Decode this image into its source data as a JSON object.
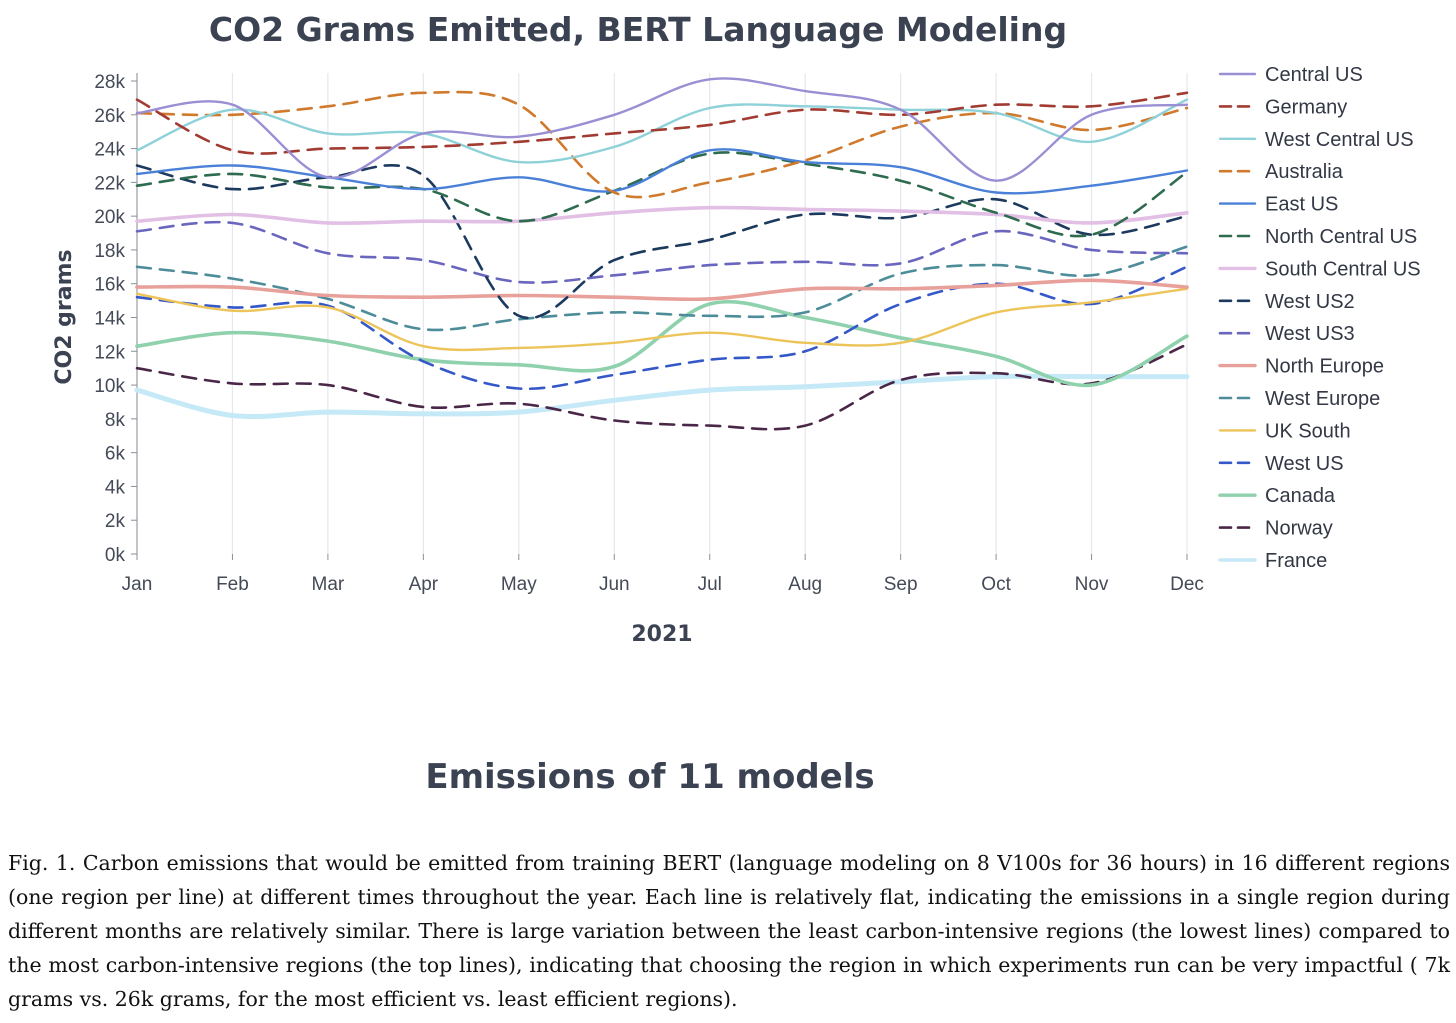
{
  "chart_data": {
    "type": "line",
    "title": "CO2 Grams Emitted, BERT Language Modeling",
    "xlabel": "2021",
    "ylabel": "CO2 grams",
    "categories": [
      "Jan",
      "Feb",
      "Mar",
      "Apr",
      "May",
      "Jun",
      "Jul",
      "Aug",
      "Sep",
      "Oct",
      "Nov",
      "Dec"
    ],
    "y_ticks": [
      "0k",
      "2k",
      "4k",
      "6k",
      "8k",
      "10k",
      "12k",
      "14k",
      "16k",
      "18k",
      "20k",
      "22k",
      "24k",
      "26k",
      "28k"
    ],
    "ylim": [
      0,
      28000
    ],
    "grid": "vertical",
    "legend_position": "right",
    "series": [
      {
        "name": "Central US",
        "color": "#9b8fd4",
        "style": "solid",
        "width": 2.4,
        "values": [
          26100,
          26600,
          22300,
          24900,
          24700,
          26000,
          28100,
          27400,
          26300,
          22100,
          26000,
          26600
        ]
      },
      {
        "name": "Germany",
        "color": "#a23b32",
        "style": "dashed",
        "width": 2.6,
        "values": [
          26900,
          23900,
          24000,
          24100,
          24400,
          24900,
          25400,
          26300,
          26000,
          26600,
          26500,
          27300
        ]
      },
      {
        "name": "West Central US",
        "color": "#8ed1d8",
        "style": "solid",
        "width": 2.4,
        "values": [
          23900,
          26300,
          24900,
          24900,
          23200,
          24100,
          26400,
          26500,
          26300,
          26100,
          24400,
          26900
        ]
      },
      {
        "name": "Australia",
        "color": "#d07a2e",
        "style": "dashed",
        "width": 2.6,
        "values": [
          26100,
          26000,
          26500,
          27300,
          26600,
          21400,
          22000,
          23300,
          25300,
          26100,
          25100,
          26400
        ]
      },
      {
        "name": "East US",
        "color": "#4a80d8",
        "style": "solid",
        "width": 2.4,
        "values": [
          22500,
          23000,
          22300,
          21600,
          22300,
          21500,
          23900,
          23200,
          22900,
          21400,
          21800,
          22700
        ]
      },
      {
        "name": "North Central US",
        "color": "#2e6b4f",
        "style": "dashed",
        "width": 2.6,
        "values": [
          21800,
          22500,
          21700,
          21600,
          19700,
          21500,
          23700,
          23100,
          22100,
          20200,
          18900,
          22600
        ]
      },
      {
        "name": "South Central US",
        "color": "#e2bfe4",
        "style": "solid",
        "width": 3.6,
        "values": [
          19700,
          20100,
          19600,
          19700,
          19700,
          20200,
          20500,
          20400,
          20300,
          20100,
          19600,
          20200
        ]
      },
      {
        "name": "West US2",
        "color": "#1c3a5e",
        "style": "dashed",
        "width": 2.6,
        "values": [
          23000,
          21600,
          22300,
          22400,
          14100,
          17400,
          18600,
          20100,
          19900,
          21000,
          18900,
          20000
        ]
      },
      {
        "name": "West US3",
        "color": "#6a66bf",
        "style": "dashed",
        "width": 2.6,
        "values": [
          19100,
          19600,
          17800,
          17400,
          16100,
          16500,
          17100,
          17300,
          17200,
          19100,
          18000,
          17800
        ]
      },
      {
        "name": "North Europe",
        "color": "#e8a19a",
        "style": "solid",
        "width": 3.6,
        "values": [
          15800,
          15800,
          15300,
          15200,
          15300,
          15200,
          15100,
          15700,
          15700,
          15900,
          16200,
          15800
        ]
      },
      {
        "name": "West Europe",
        "color": "#4d8c99",
        "style": "dashed",
        "width": 2.6,
        "values": [
          17000,
          16300,
          15100,
          13300,
          13900,
          14300,
          14100,
          14300,
          16600,
          17100,
          16500,
          18200
        ]
      },
      {
        "name": "UK South",
        "color": "#ecc45a",
        "style": "solid",
        "width": 2.4,
        "values": [
          15400,
          14400,
          14600,
          12300,
          12200,
          12500,
          13100,
          12500,
          12500,
          14300,
          14900,
          15700
        ]
      },
      {
        "name": "West US",
        "color": "#3558c9",
        "style": "dashed",
        "width": 2.6,
        "values": [
          15200,
          14600,
          14700,
          11400,
          9800,
          10600,
          11500,
          12000,
          14800,
          16000,
          14800,
          17000
        ]
      },
      {
        "name": "Canada",
        "color": "#8fd1ad",
        "style": "solid",
        "width": 3.6,
        "values": [
          12300,
          13100,
          12600,
          11500,
          11200,
          11100,
          14800,
          14000,
          12800,
          11700,
          10000,
          12900
        ]
      },
      {
        "name": "Norway",
        "color": "#4a2748",
        "style": "dashed",
        "width": 2.6,
        "values": [
          11000,
          10100,
          10000,
          8700,
          8900,
          7900,
          7600,
          7600,
          10300,
          10700,
          10100,
          12400
        ]
      },
      {
        "name": "France",
        "color": "#c6e9f7",
        "style": "solid",
        "width": 5,
        "values": [
          9700,
          8200,
          8400,
          8300,
          8400,
          9100,
          9700,
          9900,
          10200,
          10500,
          10500,
          10500
        ]
      }
    ]
  },
  "subtitle": "Emissions of 11 models",
  "caption": "Fig. 1.  Carbon emissions that would be emitted from training BERT (language modeling on 8 V100s for 36 hours) in 16 different regions (one region per line) at different times throughout the year. Each line is relatively flat, indicating the emissions in a single region during different months are relatively similar. There is large variation between the least carbon-intensive regions (the lowest lines) compared to the most carbon-intensive regions (the top lines), indicating that choosing the region in which experiments run can be very impactful ( 7k grams vs. 26k grams, for the most efficient vs. least efficient regions)."
}
